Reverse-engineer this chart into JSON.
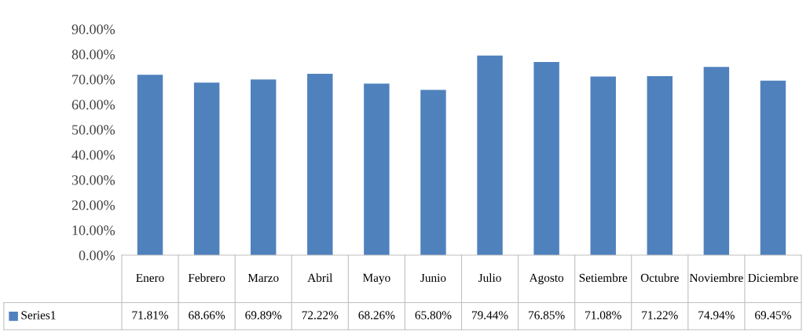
{
  "chart_data": {
    "type": "bar",
    "categories": [
      "Enero",
      "Febrero",
      "Marzo",
      "Abril",
      "Mayo",
      "Junio",
      "Julio",
      "Agosto",
      "Setiembre",
      "Octubre",
      "Noviembre",
      "Diciembre"
    ],
    "series": [
      {
        "name": "Series1",
        "color": "#4f81bd",
        "values": [
          71.81,
          68.66,
          69.89,
          72.22,
          68.26,
          65.8,
          79.44,
          76.85,
          71.08,
          71.22,
          74.94,
          69.45
        ],
        "value_labels": [
          "71.81%",
          "68.66%",
          "69.89%",
          "72.22%",
          "68.26%",
          "65.80%",
          "79.44%",
          "76.85%",
          "71.08%",
          "71.22%",
          "74.94%",
          "69.45%"
        ]
      }
    ],
    "ylim": [
      0,
      90
    ],
    "yticks": [
      {
        "value": 0,
        "label": "0.00%"
      },
      {
        "value": 10,
        "label": "10.00%"
      },
      {
        "value": 20,
        "label": "20.00%"
      },
      {
        "value": 30,
        "label": "30.00%"
      },
      {
        "value": 40,
        "label": "40.00%"
      },
      {
        "value": 50,
        "label": "50.00%"
      },
      {
        "value": 60,
        "label": "60.00%"
      },
      {
        "value": 70,
        "label": "70.00%"
      },
      {
        "value": 80,
        "label": "80.00%"
      },
      {
        "value": 90,
        "label": "90.00%"
      }
    ],
    "legend": "bottom left",
    "grid": false
  }
}
